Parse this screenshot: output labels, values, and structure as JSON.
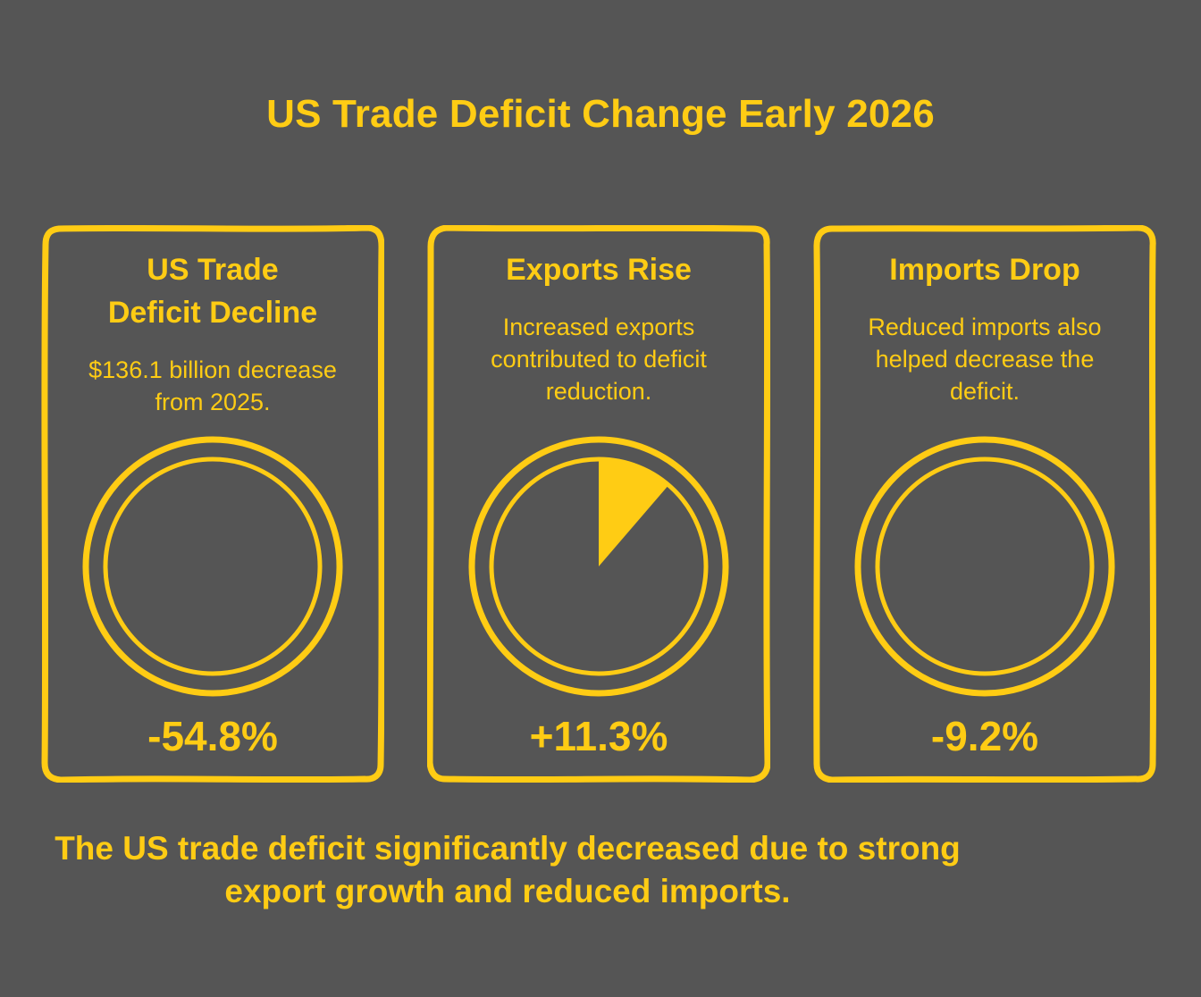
{
  "title": "US Trade Deficit Change Early 2026",
  "accent_color": "#FFCC14",
  "background_color": "#555555",
  "cards": [
    {
      "heading": "US Trade Deficit Decline",
      "description": "$136.1 billion decrease from 2025.",
      "value": "-54.8%",
      "fill_fraction": 0
    },
    {
      "heading": "Exports Rise",
      "description": "Increased exports contributed to deficit reduction.",
      "value": "+11.3%",
      "fill_fraction": 0.113
    },
    {
      "heading": "Imports Drop",
      "description": "Reduced imports also helped decrease the deficit.",
      "value": "-9.2%",
      "fill_fraction": 0
    }
  ],
  "summary": "The US trade deficit significantly decreased due to strong export growth and reduced imports."
}
